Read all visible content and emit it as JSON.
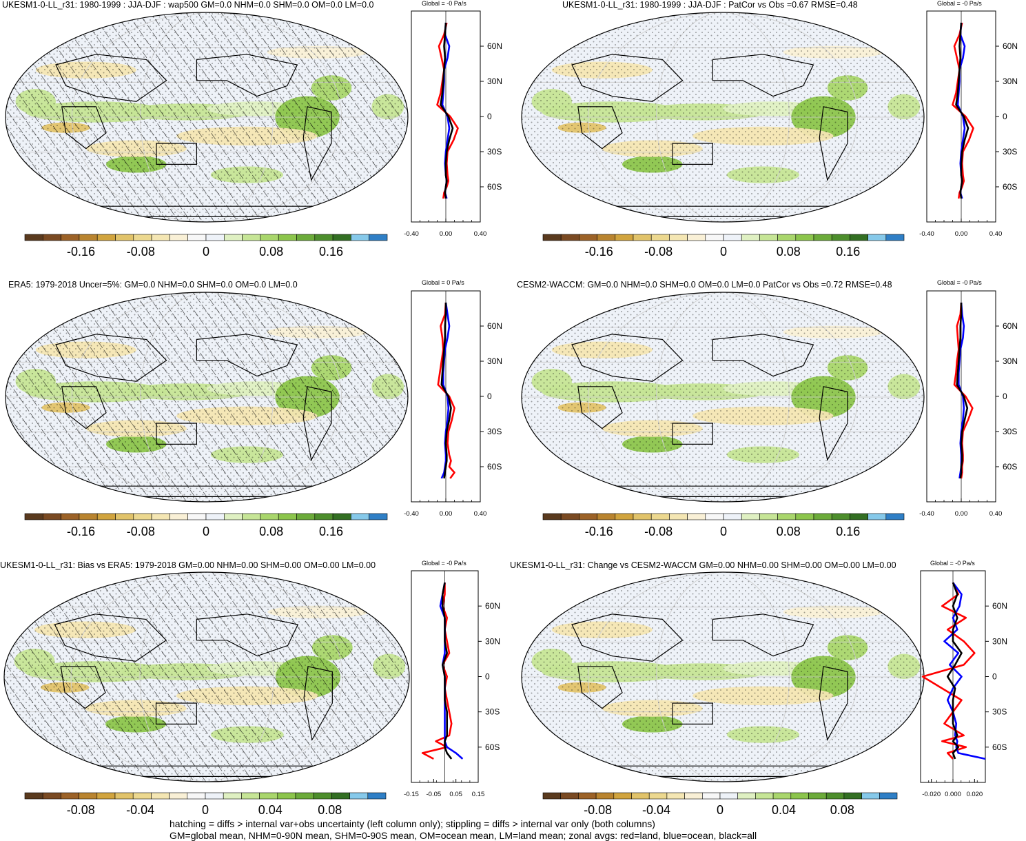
{
  "colors": {
    "land": "#ff0000",
    "ocean": "#0000ff",
    "all": "#000000"
  },
  "colorbar_palette": [
    "#5a3a1e",
    "#7a4a22",
    "#9c6227",
    "#b9842f",
    "#d1a43e",
    "#e1c36a",
    "#ecd88f",
    "#f4e6b3",
    "#f9f0d6",
    "#f7f7f7",
    "#eef2f8",
    "#dff0c2",
    "#c6e596",
    "#a9d66c",
    "#8cc54c",
    "#6cab3a",
    "#4d8e2c",
    "#336f23",
    "#86c9ea",
    "#2f7fc6"
  ],
  "footer": {
    "line1": "hatching = diffs > internal var+obs uncertainty (left column only); stippling = diffs > internal var only (both columns)",
    "line2": "GM=global mean, NHM=0-90N mean, SHM=0-90S mean, OM=ocean mean, LM=land mean; zonal avgs: red=land, blue=ocean, black=all"
  },
  "panels": [
    {
      "title": "UKESM1-0-LL_r31: 1980-1999 : JJA-DJF : wap500 GM=0.0 NHM=0.0 SHM=0.0 OM=0.0 LM=0.0",
      "zonal_title": "Global = -0 Pa/s",
      "lat_ticks": [
        "60N",
        "30N",
        "0",
        "30S",
        "60S"
      ],
      "zonal_x_ticks": [
        "-0.40",
        "0.00",
        "0.40"
      ],
      "zonal_xlim": [
        -0.4,
        0.4
      ],
      "cbar_labels": [
        "-0.16",
        "-0.08",
        "0",
        "0.08",
        "0.16"
      ],
      "hatching": true
    },
    {
      "title": "UKESM1-0-LL_r31: 1980-1999 : JJA-DJF : PatCor vs Obs =0.67 RMSE=0.48",
      "zonal_title": "Global = -0 Pa/s",
      "lat_ticks": [
        "60N",
        "30N",
        "0",
        "30S",
        "60S"
      ],
      "zonal_x_ticks": [
        "-0.40",
        "0.00",
        "0.40"
      ],
      "zonal_xlim": [
        -0.4,
        0.4
      ],
      "cbar_labels": [
        "-0.16",
        "-0.08",
        "0",
        "0.08",
        "0.16"
      ],
      "hatching": false
    },
    {
      "title": "ERA5: 1979-2018 Uncer=5%: GM=0.0 NHM=0.0 SHM=0.0 OM=0.0 LM=0.0",
      "zonal_title": "Global = 0 Pa/s",
      "lat_ticks": [
        "60N",
        "30N",
        "0",
        "30S",
        "60S"
      ],
      "zonal_x_ticks": [
        "-0.40",
        "0.00",
        "0.40"
      ],
      "zonal_xlim": [
        -0.4,
        0.4
      ],
      "cbar_labels": [
        "-0.16",
        "-0.08",
        "0",
        "0.08",
        "0.16"
      ],
      "hatching": true
    },
    {
      "title": "CESM2-WACCM: GM=0.0 NHM=0.0 SHM=0.0 OM=0.0 LM=0.0 PatCor vs Obs =0.72 RMSE=0.48",
      "zonal_title": "Global = -0 Pa/s",
      "lat_ticks": [
        "60N",
        "30N",
        "0",
        "30S",
        "60S"
      ],
      "zonal_x_ticks": [
        "-0.40",
        "0.00",
        "0.40"
      ],
      "zonal_xlim": [
        -0.4,
        0.4
      ],
      "cbar_labels": [
        "-0.16",
        "-0.08",
        "0",
        "0.08",
        "0.16"
      ],
      "hatching": false
    },
    {
      "title": "UKESM1-0-LL_r31: Bias vs ERA5: 1979-2018 GM=0.00 NHM=0.00 SHM=0.00 OM=0.00 LM=0.00",
      "zonal_title": "Global = -0 Pa/s",
      "lat_ticks": [
        "60N",
        "30N",
        "0",
        "30S",
        "60S"
      ],
      "zonal_x_ticks": [
        "-0.15",
        "-0.05",
        "0.05",
        "0.15"
      ],
      "zonal_xlim": [
        -0.15,
        0.15
      ],
      "cbar_labels": [
        "-0.08",
        "-0.04",
        "0",
        "0.04",
        "0.08"
      ],
      "hatching": true
    },
    {
      "title": "UKESM1-0-LL_r31: Change vs CESM2-WACCM GM=0.00 NHM=0.00 SHM=0.00 OM=0.00 LM=0.00",
      "zonal_title": "Global = -0 Pa/s",
      "lat_ticks": [
        "60N",
        "30N",
        "0",
        "30S",
        "60S"
      ],
      "zonal_x_ticks": [
        "-0.020",
        "0.000",
        "0.020"
      ],
      "zonal_xlim": [
        -0.03,
        0.03
      ],
      "cbar_labels": [
        "-0.08",
        "-0.04",
        "0",
        "0.04",
        "0.08"
      ],
      "hatching": false
    }
  ],
  "chart_data": [
    {
      "type": "line",
      "title": "UKESM1-0-LL_r31: 1980-1999 : JJA-DJF : wap500 GM=0.0 NHM=0.0 SHM=0.0 OM=0.0 LM=0.0",
      "xlim": [
        -0.4,
        0.4
      ],
      "ylim": [
        -90,
        90
      ],
      "series": [
        {
          "name": "land",
          "x": [
            0.01,
            -0.02,
            -0.08,
            -0.05,
            -0.02,
            -0.04,
            -0.06,
            -0.1,
            0.05,
            0.14,
            0.09,
            0.02,
            0.01,
            0.02,
            0.03,
            0.01,
            -0.02,
            -0.03
          ],
          "y": [
            80,
            70,
            60,
            50,
            40,
            30,
            20,
            10,
            0,
            -10,
            -20,
            -30,
            -40,
            -50,
            -55,
            -60,
            -65,
            -70
          ]
        },
        {
          "name": "ocean",
          "x": [
            0.0,
            -0.01,
            0.04,
            0.02,
            -0.02,
            -0.02,
            -0.03,
            -0.04,
            0.02,
            0.04,
            0.02,
            0.0,
            -0.01,
            0.0,
            0.01,
            0.0,
            -0.01,
            0.01
          ],
          "y": [
            80,
            70,
            60,
            50,
            40,
            30,
            20,
            10,
            0,
            -10,
            -20,
            -30,
            -40,
            -50,
            -55,
            -60,
            -65,
            -70
          ]
        },
        {
          "name": "all",
          "x": [
            0.0,
            -0.01,
            -0.02,
            -0.01,
            -0.02,
            -0.03,
            -0.04,
            -0.06,
            0.03,
            0.08,
            0.04,
            0.01,
            0.0,
            0.0,
            0.01,
            0.0,
            -0.01,
            0.0
          ],
          "y": [
            80,
            70,
            60,
            50,
            40,
            30,
            20,
            10,
            0,
            -10,
            -20,
            -30,
            -40,
            -50,
            -55,
            -60,
            -65,
            -70
          ]
        }
      ]
    },
    {
      "type": "line",
      "title": "UKESM1-0-LL_r31: 1980-1999 : JJA-DJF : PatCor vs Obs =0.67 RMSE=0.48",
      "xlim": [
        -0.4,
        0.4
      ],
      "ylim": [
        -90,
        90
      ],
      "series": [
        {
          "name": "land",
          "x": [
            0.01,
            -0.02,
            -0.08,
            -0.05,
            -0.02,
            -0.04,
            -0.06,
            -0.1,
            0.05,
            0.14,
            0.09,
            0.02,
            0.01,
            0.02,
            0.03,
            0.01,
            -0.02,
            -0.03
          ],
          "y": [
            80,
            70,
            60,
            50,
            40,
            30,
            20,
            10,
            0,
            -10,
            -20,
            -30,
            -40,
            -50,
            -55,
            -60,
            -65,
            -70
          ]
        },
        {
          "name": "ocean",
          "x": [
            0.0,
            -0.01,
            0.04,
            0.02,
            -0.02,
            -0.02,
            -0.03,
            -0.04,
            0.02,
            0.04,
            0.02,
            0.0,
            -0.01,
            0.0,
            0.01,
            0.0,
            -0.01,
            0.01
          ],
          "y": [
            80,
            70,
            60,
            50,
            40,
            30,
            20,
            10,
            0,
            -10,
            -20,
            -30,
            -40,
            -50,
            -55,
            -60,
            -65,
            -70
          ]
        },
        {
          "name": "all",
          "x": [
            0.0,
            -0.01,
            -0.02,
            -0.01,
            -0.02,
            -0.03,
            -0.04,
            -0.06,
            0.03,
            0.08,
            0.04,
            0.01,
            0.0,
            0.0,
            0.01,
            0.0,
            -0.01,
            0.0
          ],
          "y": [
            80,
            70,
            60,
            50,
            40,
            30,
            20,
            10,
            0,
            -10,
            -20,
            -30,
            -40,
            -50,
            -55,
            -60,
            -65,
            -70
          ]
        }
      ]
    },
    {
      "type": "line",
      "title": "ERA5: 1979-2018 Uncer=5%: GM=0.0 NHM=0.0 SHM=0.0 OM=0.0 LM=0.0",
      "xlim": [
        -0.4,
        0.4
      ],
      "ylim": [
        -90,
        90
      ],
      "series": [
        {
          "name": "land",
          "x": [
            0.0,
            -0.01,
            -0.06,
            -0.04,
            -0.03,
            -0.05,
            -0.07,
            -0.09,
            0.04,
            0.1,
            0.07,
            0.03,
            0.02,
            0.04,
            0.06,
            0.04,
            0.1,
            0.05
          ],
          "y": [
            80,
            70,
            60,
            50,
            40,
            30,
            20,
            10,
            0,
            -10,
            -20,
            -30,
            -40,
            -50,
            -55,
            -60,
            -65,
            -70
          ]
        },
        {
          "name": "ocean",
          "x": [
            0.0,
            0.02,
            0.04,
            0.02,
            -0.01,
            -0.02,
            -0.03,
            -0.03,
            0.02,
            0.03,
            0.02,
            0.0,
            -0.01,
            0.0,
            0.0,
            -0.01,
            -0.02,
            -0.05
          ],
          "y": [
            80,
            70,
            60,
            50,
            40,
            30,
            20,
            10,
            0,
            -10,
            -20,
            -30,
            -40,
            -50,
            -55,
            -60,
            -65,
            -70
          ]
        },
        {
          "name": "all",
          "x": [
            0.0,
            0.0,
            -0.01,
            -0.01,
            -0.02,
            -0.03,
            -0.04,
            -0.05,
            0.03,
            0.06,
            0.04,
            0.01,
            0.0,
            0.01,
            0.01,
            0.0,
            -0.01,
            -0.02
          ],
          "y": [
            80,
            70,
            60,
            50,
            40,
            30,
            20,
            10,
            0,
            -10,
            -20,
            -30,
            -40,
            -50,
            -55,
            -60,
            -65,
            -70
          ]
        }
      ]
    },
    {
      "type": "line",
      "title": "CESM2-WACCM: GM=0.0 NHM=0.0 SHM=0.0 OM=0.0 LM=0.0 PatCor vs Obs =0.72 RMSE=0.48",
      "xlim": [
        -0.4,
        0.4
      ],
      "ylim": [
        -90,
        90
      ],
      "series": [
        {
          "name": "land",
          "x": [
            0.0,
            -0.01,
            -0.05,
            -0.04,
            -0.03,
            -0.05,
            -0.06,
            -0.08,
            0.05,
            0.13,
            0.08,
            0.02,
            0.01,
            0.02,
            0.02,
            0.01,
            0.01,
            0.0
          ],
          "y": [
            80,
            70,
            60,
            50,
            40,
            30,
            20,
            10,
            0,
            -10,
            -20,
            -30,
            -40,
            -50,
            -55,
            -60,
            -65,
            -70
          ]
        },
        {
          "name": "ocean",
          "x": [
            0.0,
            0.01,
            0.03,
            0.02,
            -0.01,
            -0.02,
            -0.03,
            -0.03,
            0.02,
            0.03,
            0.02,
            0.0,
            -0.01,
            0.0,
            0.0,
            0.0,
            -0.01,
            -0.02
          ],
          "y": [
            80,
            70,
            60,
            50,
            40,
            30,
            20,
            10,
            0,
            -10,
            -20,
            -30,
            -40,
            -50,
            -55,
            -60,
            -65,
            -70
          ]
        },
        {
          "name": "all",
          "x": [
            0.0,
            0.0,
            -0.01,
            -0.01,
            -0.02,
            -0.03,
            -0.04,
            -0.05,
            0.03,
            0.07,
            0.04,
            0.01,
            0.0,
            0.01,
            0.01,
            0.0,
            0.0,
            -0.01
          ],
          "y": [
            80,
            70,
            60,
            50,
            40,
            30,
            20,
            10,
            0,
            -10,
            -20,
            -30,
            -40,
            -50,
            -55,
            -60,
            -65,
            -70
          ]
        }
      ]
    },
    {
      "type": "line",
      "title": "UKESM1-0-LL_r31: Bias vs ERA5: 1979-2018 GM=0.00 NHM=0.00 SHM=0.00 OM=0.00 LM=0.00",
      "xlim": [
        -0.15,
        0.15
      ],
      "ylim": [
        -90,
        90
      ],
      "series": [
        {
          "name": "land",
          "x": [
            0.0,
            0.0,
            -0.01,
            0.01,
            0.0,
            0.01,
            0.02,
            -0.01,
            0.01,
            0.0,
            0.01,
            0.02,
            0.03,
            0.02,
            -0.04,
            0.01,
            -0.1,
            -0.05
          ],
          "y": [
            80,
            70,
            60,
            50,
            40,
            30,
            20,
            10,
            0,
            -10,
            -20,
            -30,
            -40,
            -50,
            -55,
            -60,
            -65,
            -70
          ]
        },
        {
          "name": "ocean",
          "x": [
            0.0,
            -0.01,
            -0.02,
            0.0,
            0.0,
            0.0,
            0.0,
            -0.01,
            0.0,
            0.0,
            0.0,
            0.0,
            0.0,
            0.0,
            0.0,
            0.01,
            0.05,
            0.08
          ],
          "y": [
            80,
            70,
            60,
            50,
            40,
            30,
            20,
            10,
            0,
            -10,
            -20,
            -30,
            -40,
            -50,
            -55,
            -60,
            -65,
            -70
          ]
        },
        {
          "name": "all",
          "x": [
            0.0,
            -0.01,
            -0.01,
            0.0,
            0.0,
            0.0,
            0.01,
            -0.01,
            0.0,
            0.0,
            0.0,
            0.01,
            0.01,
            0.01,
            0.0,
            0.0,
            0.01,
            0.03
          ],
          "y": [
            80,
            70,
            60,
            50,
            40,
            30,
            20,
            10,
            0,
            -10,
            -20,
            -30,
            -40,
            -50,
            -55,
            -60,
            -65,
            -70
          ]
        }
      ]
    },
    {
      "type": "line",
      "title": "UKESM1-0-LL_r31: Change vs CESM2-WACCM GM=0.00 NHM=0.00 SHM=0.00 OM=0.00 LM=0.00",
      "xlim": [
        -0.03,
        0.03
      ],
      "ylim": [
        -90,
        90
      ],
      "series": [
        {
          "name": "land",
          "x": [
            0.0,
            0.005,
            -0.01,
            0.012,
            -0.005,
            0.01,
            0.02,
            0.01,
            -0.028,
            -0.01,
            0.008,
            0.0,
            -0.008,
            0.01,
            -0.01,
            0.012,
            -0.005,
            0.0
          ],
          "y": [
            80,
            70,
            60,
            50,
            40,
            30,
            20,
            10,
            0,
            -10,
            -20,
            -30,
            -40,
            -50,
            -55,
            -60,
            -65,
            -70
          ]
        },
        {
          "name": "ocean",
          "x": [
            0.0,
            0.008,
            0.006,
            0.0,
            0.004,
            -0.008,
            0.005,
            -0.003,
            0.008,
            0.0,
            -0.005,
            0.0,
            0.003,
            0.002,
            0.004,
            0.003,
            0.005,
            0.03
          ],
          "y": [
            80,
            70,
            60,
            50,
            40,
            30,
            20,
            10,
            0,
            -10,
            -20,
            -30,
            -40,
            -50,
            -55,
            -60,
            -65,
            -70
          ]
        },
        {
          "name": "all",
          "x": [
            0.0,
            0.004,
            0.0,
            0.004,
            0.0,
            0.0,
            0.008,
            0.002,
            -0.005,
            0.002,
            0.0,
            0.0,
            0.0,
            0.004,
            0.0,
            0.005,
            0.0,
            0.002
          ],
          "y": [
            80,
            70,
            60,
            50,
            40,
            30,
            20,
            10,
            0,
            -10,
            -20,
            -30,
            -40,
            -50,
            -55,
            -60,
            -65,
            -70
          ]
        }
      ]
    }
  ]
}
